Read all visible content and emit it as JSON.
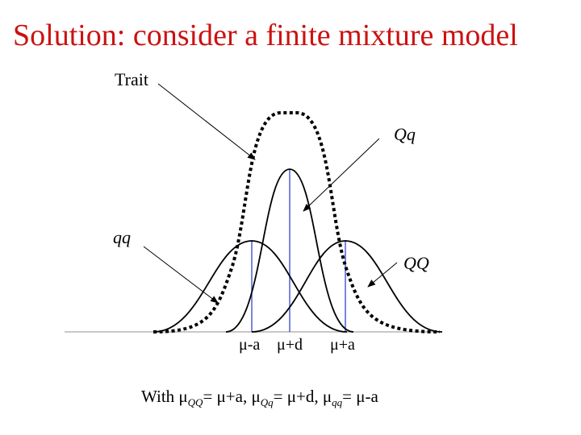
{
  "title": "Solution: consider a finite mixture model",
  "colors": {
    "title": "#cc1111",
    "mean_lines": "#3344cc",
    "curves": "#000000"
  },
  "labels": {
    "trait": "Trait",
    "Qq": "Qq",
    "qq": "qq",
    "QQ": "QQ"
  },
  "axis_ticks": [
    "μ-a",
    "μ+d",
    "μ+a"
  ],
  "caption": {
    "prefix": "With ",
    "mu1": "μ",
    "sub1": "QQ",
    "part1": "= μ+a, ",
    "mu2": "μ",
    "sub2": "Qq",
    "part2": "= μ+d, ",
    "mu3": "μ",
    "sub3": "qq",
    "part3": "= μ-a"
  }
}
